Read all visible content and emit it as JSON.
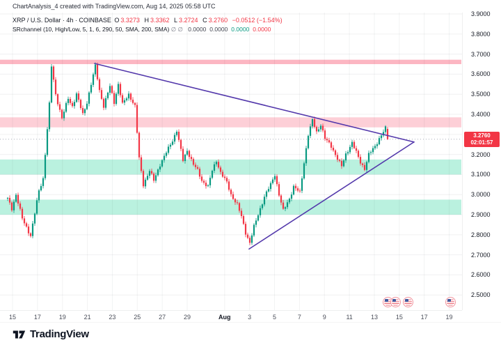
{
  "header": {
    "title": "ChartAnalysis_4 created with TradingView.com, Aug 14, 2025 05:58 UTC"
  },
  "legend": {
    "title": "XRP / U.S. Dollar · 4h · COINBASE",
    "ohlc": {
      "o_label": "O",
      "o": "3.3273",
      "h_label": "H",
      "h": "3.3362",
      "l_label": "L",
      "l": "3.2724",
      "c_label": "C",
      "c": "3.2760",
      "change": "−0.0512 (−1.54%)"
    },
    "indicator": {
      "title": "SRchannel (10, High/Low, 5, 1, 6, 290, 50, SMA, 200, SMA)",
      "flags": "∅  ∅",
      "values": [
        "0.0000",
        "0.0000",
        "0.0000",
        "0.0000"
      ],
      "value_colors": [
        "#434651",
        "#434651",
        "#089981",
        "#f23645"
      ]
    }
  },
  "chart_data": {
    "type": "candlestick",
    "symbol": "XRP/USD",
    "exchange": "COINBASE",
    "interval": "4h",
    "ylim": [
      2.424,
      3.907
    ],
    "grid": true,
    "up_color": "#089981",
    "down_color": "#f23645",
    "y_ticks": [
      "3.9000",
      "3.8000",
      "3.7000",
      "3.6000",
      "3.5000",
      "3.4000",
      "3.3000",
      "3.2000",
      "3.1000",
      "3.0000",
      "2.9000",
      "2.8000",
      "2.7000",
      "2.6000",
      "2.5000"
    ],
    "x_ticks": [
      {
        "label": "15",
        "day": 1
      },
      {
        "label": "17",
        "day": 3
      },
      {
        "label": "19",
        "day": 5
      },
      {
        "label": "21",
        "day": 7
      },
      {
        "label": "23",
        "day": 9
      },
      {
        "label": "25",
        "day": 11
      },
      {
        "label": "27",
        "day": 13
      },
      {
        "label": "29",
        "day": 15
      },
      {
        "label": "Aug",
        "day": 18,
        "bold": true
      },
      {
        "label": "3",
        "day": 20
      },
      {
        "label": "5",
        "day": 22
      },
      {
        "label": "7",
        "day": 24
      },
      {
        "label": "9",
        "day": 26
      },
      {
        "label": "11",
        "day": 28
      },
      {
        "label": "13",
        "day": 30
      },
      {
        "label": "15",
        "day": 32
      },
      {
        "label": "17",
        "day": 34
      },
      {
        "label": "19",
        "day": 36
      }
    ],
    "zones": [
      {
        "name": "resistance-zone-upper",
        "price_from": 3.65,
        "price_to": 3.672,
        "color": "rgba(247,82,110,0.42)"
      },
      {
        "name": "resistance-zone-mid",
        "price_from": 3.335,
        "price_to": 3.385,
        "color": "rgba(247,82,110,0.28)"
      },
      {
        "name": "support-zone-upper",
        "price_from": 3.1,
        "price_to": 3.175,
        "color": "rgba(26,208,148,0.30)"
      },
      {
        "name": "support-zone-lower",
        "price_from": 2.9,
        "price_to": 2.975,
        "color": "rgba(26,208,148,0.30)"
      }
    ],
    "trendlines": [
      {
        "name": "descending-trendline",
        "day1": 7.58,
        "price1": 3.653,
        "day2": 33.18,
        "price2": 3.262
      },
      {
        "name": "ascending-trendline",
        "day1": 19.96,
        "price1": 2.729,
        "day2": 33.18,
        "price2": 3.262
      }
    ],
    "trendline_color": "#5338ab",
    "price_path": [
      [
        0,
        2.98
      ],
      [
        2,
        2.93
      ],
      [
        4,
        3.0
      ],
      [
        7,
        2.88
      ],
      [
        11,
        2.795
      ],
      [
        15,
        3.02
      ],
      [
        17,
        3.08
      ],
      [
        20,
        3.45
      ],
      [
        21,
        3.64
      ],
      [
        23,
        3.5
      ],
      [
        26,
        3.38
      ],
      [
        29,
        3.48
      ],
      [
        31,
        3.44
      ],
      [
        33,
        3.5
      ],
      [
        36,
        3.4
      ],
      [
        38,
        3.46
      ],
      [
        42,
        3.64
      ],
      [
        44,
        3.52
      ],
      [
        46,
        3.44
      ],
      [
        49,
        3.54
      ],
      [
        51,
        3.46
      ],
      [
        53,
        3.55
      ],
      [
        55,
        3.45
      ],
      [
        58,
        3.5
      ],
      [
        61,
        3.44
      ],
      [
        63,
        3.18
      ],
      [
        65,
        3.05
      ],
      [
        68,
        3.12
      ],
      [
        70,
        3.07
      ],
      [
        73,
        3.15
      ],
      [
        76,
        3.21
      ],
      [
        79,
        3.27
      ],
      [
        81,
        3.32
      ],
      [
        84,
        3.17
      ],
      [
        86,
        3.22
      ],
      [
        89,
        3.15
      ],
      [
        91,
        3.12
      ],
      [
        93,
        3.07
      ],
      [
        96,
        3.04
      ],
      [
        98,
        3.12
      ],
      [
        100,
        3.17
      ],
      [
        102,
        3.11
      ],
      [
        105,
        3.06
      ],
      [
        107,
        3.0
      ],
      [
        110,
        2.95
      ],
      [
        112,
        2.89
      ],
      [
        114,
        2.81
      ],
      [
        116,
        2.76
      ],
      [
        118,
        2.84
      ],
      [
        120,
        2.9
      ],
      [
        123,
        2.99
      ],
      [
        126,
        3.05
      ],
      [
        128,
        3.1
      ],
      [
        130,
        3.0
      ],
      [
        132,
        2.92
      ],
      [
        135,
        2.98
      ],
      [
        137,
        3.04
      ],
      [
        140,
        3.01
      ],
      [
        142,
        3.16
      ],
      [
        144,
        3.3
      ],
      [
        146,
        3.37
      ],
      [
        148,
        3.31
      ],
      [
        150,
        3.35
      ],
      [
        152,
        3.28
      ],
      [
        155,
        3.24
      ],
      [
        157,
        3.2
      ],
      [
        160,
        3.14
      ],
      [
        162,
        3.2
      ],
      [
        165,
        3.26
      ],
      [
        167,
        3.21
      ],
      [
        169,
        3.16
      ],
      [
        171,
        3.13
      ],
      [
        173,
        3.2
      ],
      [
        176,
        3.24
      ],
      [
        178,
        3.28
      ],
      [
        181,
        3.33
      ],
      [
        182,
        3.276
      ]
    ],
    "last_candle": {
      "open": 3.3273,
      "high": 3.3362,
      "low": 3.2724,
      "close": 3.276
    },
    "last_price_label": {
      "text": "3.2760",
      "countdown": "02:01:57",
      "bg": "#f23645"
    }
  },
  "events": [
    {
      "day": 31.0,
      "type": "double",
      "name": "economic-event-icon"
    },
    {
      "day": 32.6,
      "type": "single",
      "name": "economic-event-icon"
    },
    {
      "day": 36.0,
      "type": "single",
      "name": "economic-event-icon"
    }
  ],
  "footer": {
    "brand": "TradingView"
  }
}
